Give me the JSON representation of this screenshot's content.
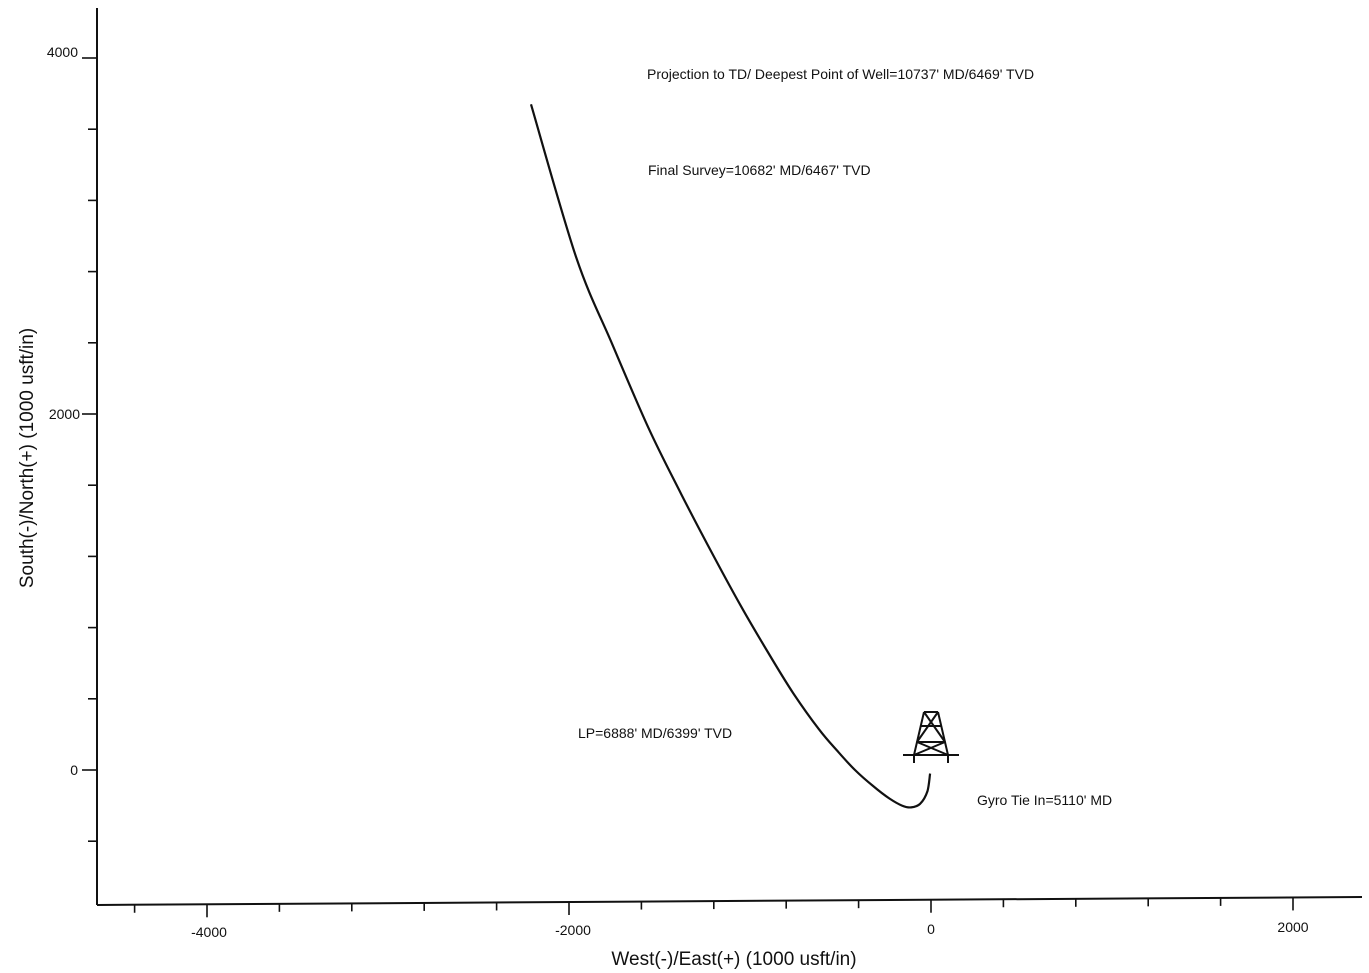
{
  "chart_data": {
    "type": "line",
    "xlabel": "West(-)/East(+) (1000 usft/in)",
    "ylabel": "South(-)/North(+) (1000 usft/in)",
    "xlim": [
      -4600,
      2400
    ],
    "ylim": [
      -740,
      4250
    ],
    "x_major_ticks": [
      -4000,
      -2000,
      0,
      2000
    ],
    "x_minor_step": 400,
    "y_major_ticks": [
      0,
      2000,
      4000
    ],
    "y_minor_step": 400,
    "x_tick_labels": [
      "-4000",
      "-2000",
      "0",
      "2000"
    ],
    "y_tick_labels": [
      "0",
      "2000",
      "4000"
    ],
    "grid": false,
    "series": [
      {
        "x": [
          -5,
          -20,
          -60,
          -110,
          -160,
          -230,
          -320,
          -420,
          -520,
          -620,
          -760,
          -900,
          -1050,
          -1200,
          -1380,
          -1560,
          -1760,
          -1960,
          -2210
        ],
        "y": [
          -20,
          -120,
          -190,
          -210,
          -200,
          -160,
          -90,
          0,
          110,
          230,
          430,
          660,
          920,
          1200,
          1550,
          1920,
          2390,
          2880,
          3740
        ]
      }
    ],
    "annotations": [
      {
        "text": "Projection to TD/ Deepest Point of Well=10737' MD/6469' TVD"
      },
      {
        "text": "Final Survey=10682' MD/6467' TVD"
      },
      {
        "text": "LP=6888' MD/6399' TVD"
      },
      {
        "text": "Gyro Tie In=5110' MD"
      }
    ],
    "markers": [
      {
        "icon": "rig-icon",
        "x": 0,
        "y": 0
      }
    ]
  }
}
